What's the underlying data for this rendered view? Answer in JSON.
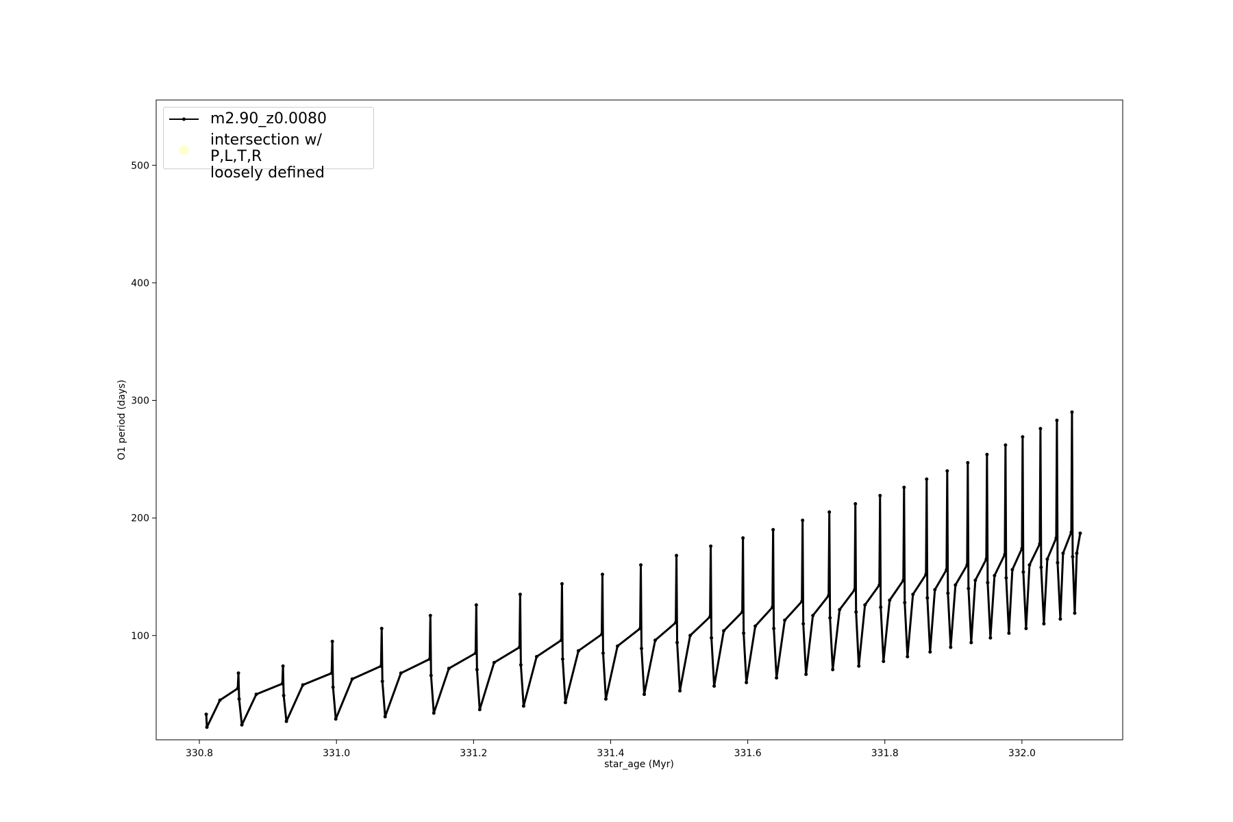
{
  "chart_data": {
    "type": "line",
    "xlabel": "star_age (Myr)",
    "ylabel": "O1 period (days)",
    "xlim": [
      330.737,
      332.147
    ],
    "ylim": [
      11.3,
      555.5
    ],
    "xticks": [
      330.8,
      {
        "value": 331.0,
        "label": "331.0"
      },
      331.2,
      331.4,
      331.6,
      331.8,
      {
        "value": 332.0,
        "label": "332.0"
      }
    ],
    "yticks": [
      100,
      200,
      300,
      400,
      500
    ],
    "legend": "upper left",
    "series": [
      {
        "name": "m2.90_z0.0080",
        "color": "#000000",
        "marker": "o",
        "x": [
          330.81,
          330.811,
          330.83,
          330.856,
          330.857,
          330.858,
          330.862,
          330.883,
          330.921,
          330.922,
          330.923,
          330.927,
          330.951,
          330.993,
          330.994,
          330.995,
          330.999,
          331.023,
          331.065,
          331.066,
          331.067,
          331.071,
          331.094,
          331.136,
          331.137,
          331.138,
          331.142,
          331.164,
          331.203,
          331.204,
          331.205,
          331.209,
          331.23,
          331.267,
          331.268,
          331.269,
          331.273,
          331.292,
          331.328,
          331.329,
          331.33,
          331.334,
          331.353,
          331.387,
          331.388,
          331.389,
          331.393,
          331.41,
          331.443,
          331.444,
          331.445,
          331.449,
          331.465,
          331.495,
          331.496,
          331.497,
          331.501,
          331.516,
          331.545,
          331.546,
          331.547,
          331.551,
          331.565,
          331.592,
          331.593,
          331.594,
          331.598,
          331.611,
          331.636,
          331.637,
          331.638,
          331.642,
          331.654,
          331.679,
          331.68,
          331.681,
          331.685,
          331.695,
          331.718,
          331.719,
          331.72,
          331.724,
          331.734,
          331.756,
          331.757,
          331.758,
          331.762,
          331.771,
          331.792,
          331.793,
          331.794,
          331.798,
          331.807,
          331.827,
          331.828,
          331.829,
          331.833,
          331.841,
          331.86,
          331.861,
          331.862,
          331.866,
          331.873,
          331.89,
          331.891,
          331.892,
          331.896,
          331.903,
          331.92,
          331.921,
          331.922,
          331.926,
          331.932,
          331.948,
          331.949,
          331.95,
          331.954,
          331.96,
          331.975,
          331.976,
          331.977,
          331.981,
          331.986,
          332.0,
          332.001,
          332.002,
          332.006,
          332.011,
          332.026,
          332.027,
          332.028,
          332.032,
          332.037,
          332.05,
          332.051,
          332.052,
          332.056,
          332.06,
          332.072,
          332.073,
          332.074,
          332.077,
          332.08,
          332.085
        ],
        "values": [
          33,
          22,
          45,
          55,
          68,
          46,
          24,
          50,
          59,
          74,
          49,
          27,
          58,
          68,
          95,
          56,
          29,
          63,
          74,
          106,
          61,
          31,
          68,
          80,
          117,
          66,
          34,
          72,
          85,
          126,
          71,
          37,
          77,
          90,
          135,
          75,
          40,
          82,
          96,
          144,
          80,
          43,
          87,
          101,
          152,
          85,
          46,
          91,
          106,
          160,
          89,
          50,
          96,
          111,
          168,
          94,
          53,
          100,
          116,
          176,
          98,
          57,
          104,
          120,
          183,
          102,
          60,
          108,
          124,
          190,
          106,
          64,
          113,
          129,
          198,
          110,
          67,
          117,
          134,
          205,
          115,
          71,
          122,
          139,
          212,
          120,
          74,
          126,
          143,
          219,
          124,
          78,
          130,
          147,
          226,
          128,
          82,
          135,
          152,
          233,
          132,
          86,
          139,
          156,
          240,
          136,
          90,
          143,
          160,
          247,
          140,
          94,
          147,
          165,
          254,
          145,
          98,
          151,
          169,
          262,
          149,
          102,
          156,
          174,
          269,
          154,
          106,
          160,
          178,
          276,
          158,
          110,
          165,
          183,
          283,
          162,
          114,
          170,
          188,
          290,
          167,
          119,
          170,
          187
        ]
      },
      {
        "name": "intersection w/ P,L,T,R\nloosely defined",
        "color": "#ffffcc",
        "marker": "o",
        "x": [],
        "values": []
      }
    ]
  }
}
